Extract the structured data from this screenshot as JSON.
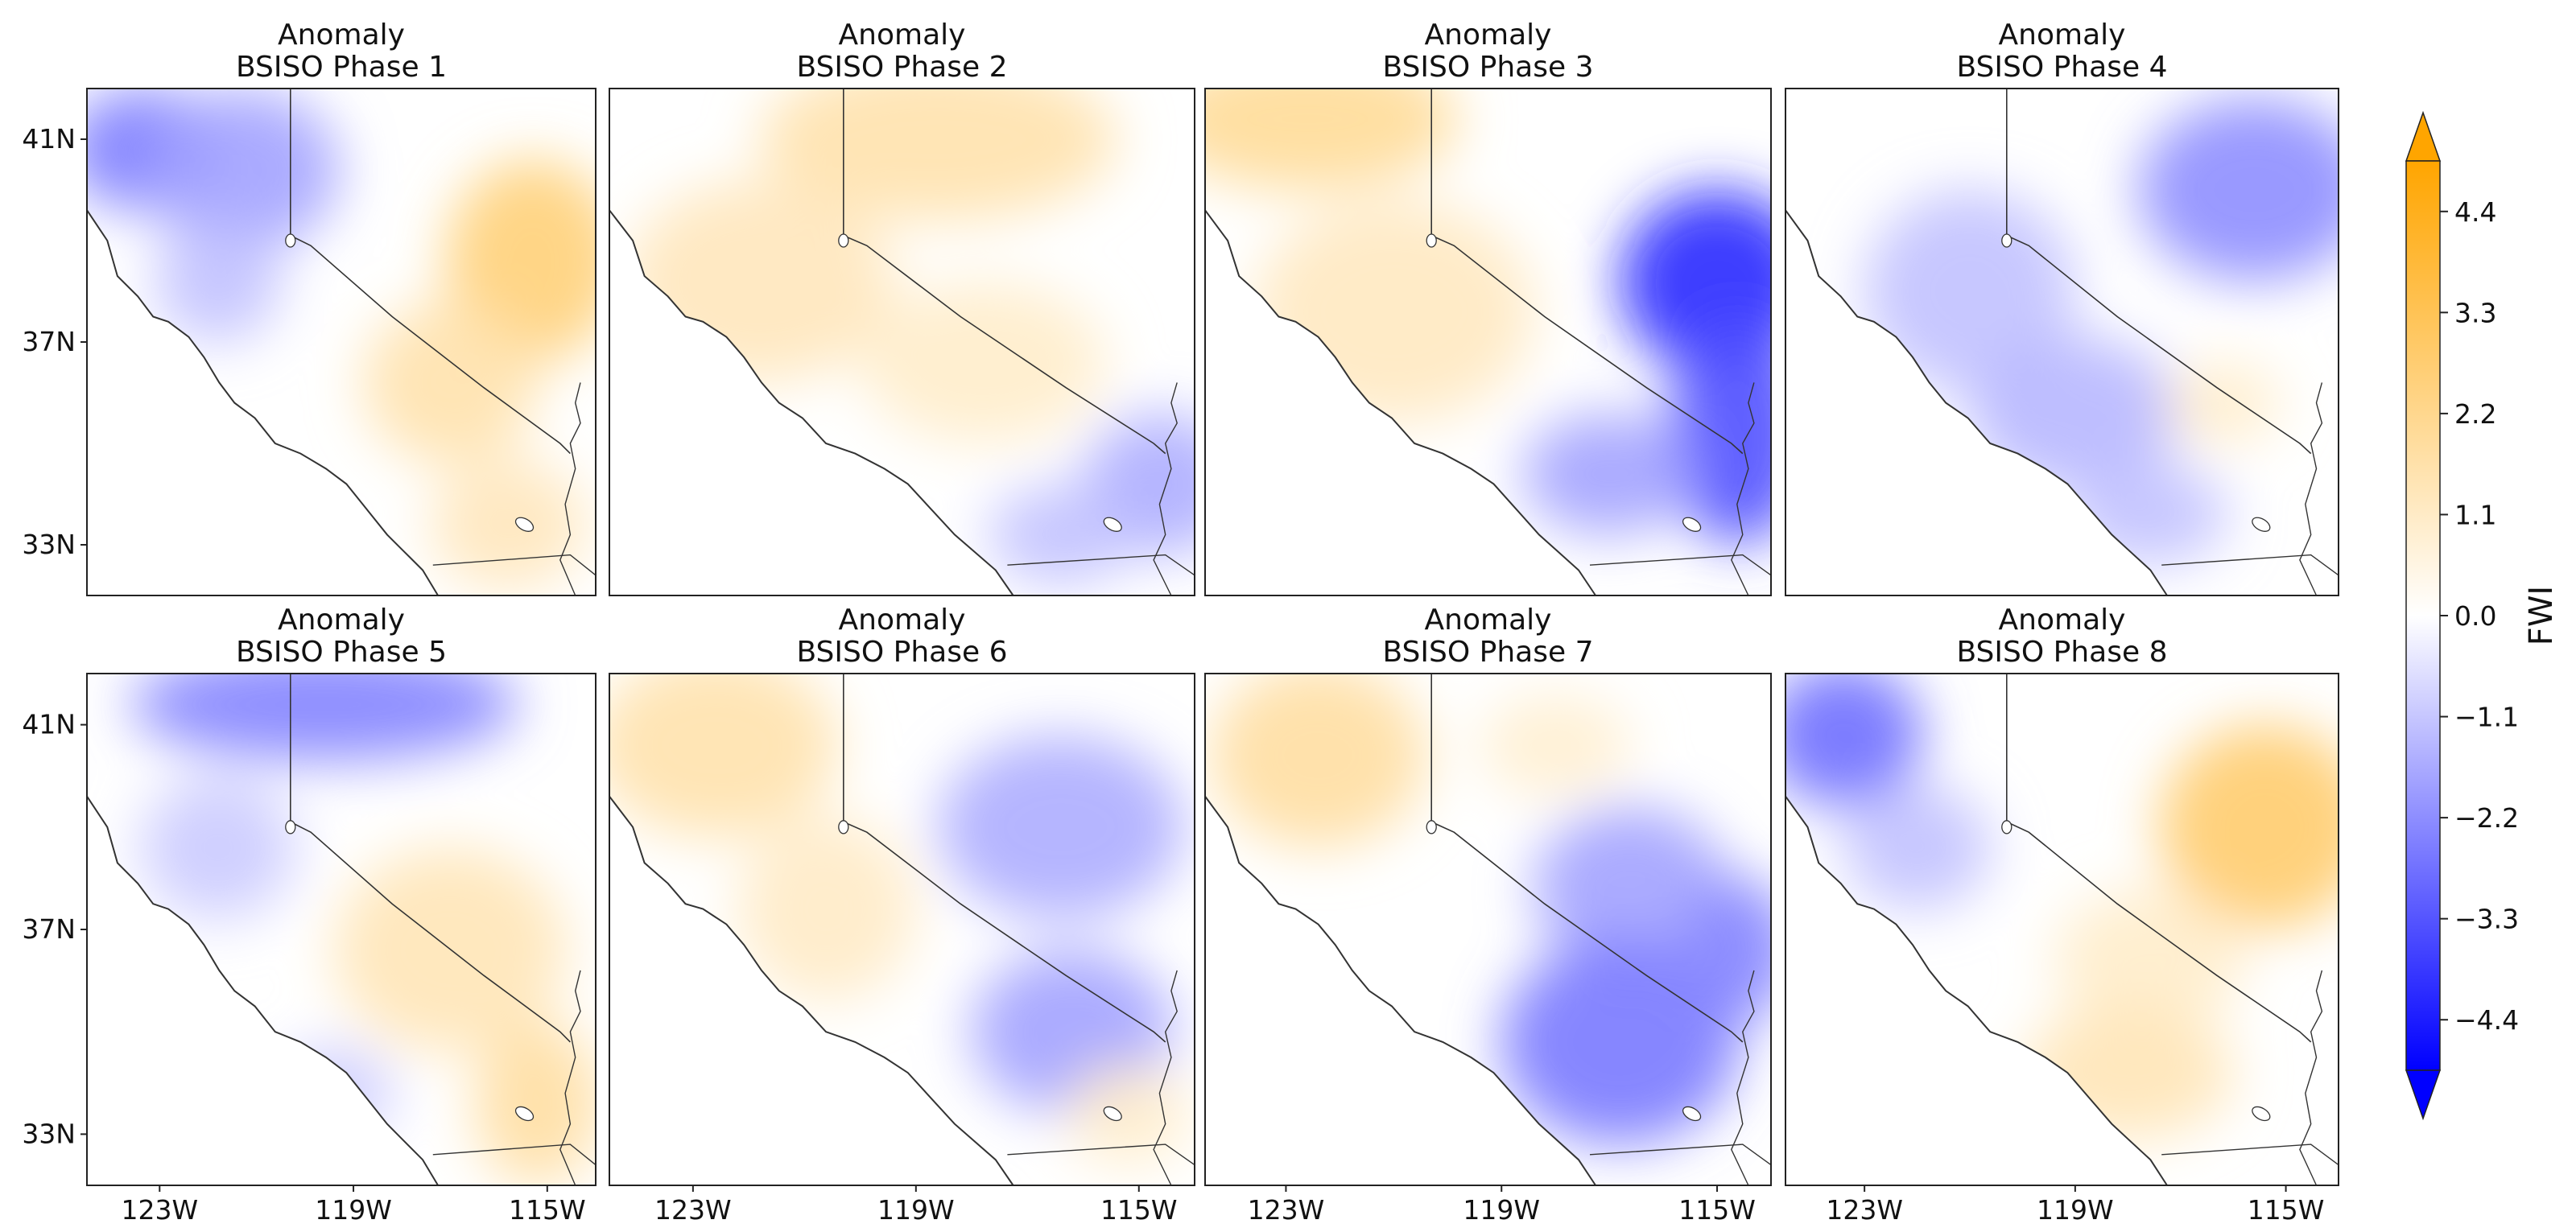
{
  "figure": {
    "panel_title_line1": "Anomaly",
    "colorbar_label": "FWI"
  },
  "chart_data": {
    "type": "heatmap",
    "variable": "FWI",
    "colormap": "blue-white-orange diverging",
    "colors": {
      "negative": "#0000ff",
      "zero": "#ffffff",
      "positive": "#ffa500"
    },
    "colorbar_range": [
      -4.95,
      4.95
    ],
    "colorbar_ticks": [
      4.4,
      3.3,
      2.2,
      1.1,
      0.0,
      -1.1,
      -2.2,
      -3.3,
      -4.4
    ],
    "colorbar_tick_labels": [
      "4.4",
      "3.3",
      "2.2",
      "1.1",
      "0.0",
      "−1.1",
      "−2.2",
      "−3.3",
      "−4.4"
    ],
    "colorbar_extend": "both",
    "lat_ticks": [
      "41N",
      "37N",
      "33N"
    ],
    "lon_ticks": [
      "123W",
      "119W",
      "115W"
    ],
    "lat_range": [
      32,
      42
    ],
    "lon_range": [
      -124.5,
      -114
    ],
    "panels": [
      {
        "title_line1": "Anomaly",
        "title_line2": "BSISO Phase 1",
        "anomalies": [
          {
            "lon": -123.3,
            "lat": 40.8,
            "value": -2.6,
            "rx": 1.6,
            "ry": 1.2
          },
          {
            "lon": -121.3,
            "lat": 40.4,
            "value": -1.8,
            "rx": 2.0,
            "ry": 1.6
          },
          {
            "lon": -121.8,
            "lat": 38.2,
            "value": -1.2,
            "rx": 1.3,
            "ry": 1.2
          },
          {
            "lon": -115.3,
            "lat": 38.6,
            "value": 2.6,
            "rx": 1.8,
            "ry": 2.0
          },
          {
            "lon": -117.0,
            "lat": 36.2,
            "value": 1.6,
            "rx": 1.8,
            "ry": 1.6
          },
          {
            "lon": -115.8,
            "lat": 33.4,
            "value": 1.3,
            "rx": 1.6,
            "ry": 1.3
          }
        ]
      },
      {
        "title_line1": "Anomaly",
        "title_line2": "BSISO Phase 2",
        "anomalies": [
          {
            "lon": -118.6,
            "lat": 41.0,
            "value": 1.6,
            "rx": 3.2,
            "ry": 1.6
          },
          {
            "lon": -121.8,
            "lat": 38.2,
            "value": 1.3,
            "rx": 2.4,
            "ry": 2.0
          },
          {
            "lon": -117.8,
            "lat": 36.6,
            "value": 1.0,
            "rx": 2.2,
            "ry": 1.6
          },
          {
            "lon": -114.6,
            "lat": 34.2,
            "value": -1.6,
            "rx": 1.4,
            "ry": 1.4
          },
          {
            "lon": -116.4,
            "lat": 33.2,
            "value": -1.2,
            "rx": 1.3,
            "ry": 1.0
          }
        ]
      },
      {
        "title_line1": "Anomaly",
        "title_line2": "BSISO Phase 3",
        "anomalies": [
          {
            "lon": -122.6,
            "lat": 41.4,
            "value": 2.0,
            "rx": 2.8,
            "ry": 1.4
          },
          {
            "lon": -121.0,
            "lat": 37.6,
            "value": 1.2,
            "rx": 2.6,
            "ry": 2.2
          },
          {
            "lon": -115.0,
            "lat": 38.2,
            "value": -4.2,
            "rx": 1.8,
            "ry": 1.8
          },
          {
            "lon": -114.6,
            "lat": 35.2,
            "value": -3.4,
            "rx": 1.3,
            "ry": 2.2
          },
          {
            "lon": -117.0,
            "lat": 34.4,
            "value": -1.8,
            "rx": 1.6,
            "ry": 1.2
          }
        ]
      },
      {
        "title_line1": "Anomaly",
        "title_line2": "BSISO Phase 4",
        "anomalies": [
          {
            "lon": -115.6,
            "lat": 40.0,
            "value": -2.2,
            "rx": 2.2,
            "ry": 1.8
          },
          {
            "lon": -121.0,
            "lat": 38.0,
            "value": -1.2,
            "rx": 2.0,
            "ry": 2.0
          },
          {
            "lon": -119.0,
            "lat": 35.6,
            "value": -1.4,
            "rx": 2.0,
            "ry": 1.5
          },
          {
            "lon": -116.2,
            "lat": 35.8,
            "value": 1.0,
            "rx": 1.1,
            "ry": 0.8
          },
          {
            "lon": -117.6,
            "lat": 33.6,
            "value": -1.2,
            "rx": 1.5,
            "ry": 1.0
          }
        ]
      },
      {
        "title_line1": "Anomaly",
        "title_line2": "BSISO Phase 5",
        "anomalies": [
          {
            "lon": -119.6,
            "lat": 41.4,
            "value": -2.4,
            "rx": 4.0,
            "ry": 1.1
          },
          {
            "lon": -121.8,
            "lat": 38.6,
            "value": -1.0,
            "rx": 1.6,
            "ry": 1.4
          },
          {
            "lon": -117.0,
            "lat": 36.6,
            "value": 1.4,
            "rx": 2.4,
            "ry": 2.0
          },
          {
            "lon": -115.2,
            "lat": 33.6,
            "value": 1.8,
            "rx": 1.3,
            "ry": 1.6
          },
          {
            "lon": -119.4,
            "lat": 33.8,
            "value": -1.0,
            "rx": 1.2,
            "ry": 0.9
          }
        ]
      },
      {
        "title_line1": "Anomaly",
        "title_line2": "BSISO Phase 6",
        "anomalies": [
          {
            "lon": -122.6,
            "lat": 40.6,
            "value": 1.6,
            "rx": 2.2,
            "ry": 1.8
          },
          {
            "lon": -120.6,
            "lat": 37.4,
            "value": 1.1,
            "rx": 1.6,
            "ry": 1.8
          },
          {
            "lon": -116.4,
            "lat": 39.0,
            "value": -1.6,
            "rx": 2.2,
            "ry": 1.8
          },
          {
            "lon": -116.2,
            "lat": 35.0,
            "value": -1.8,
            "rx": 1.8,
            "ry": 1.6
          },
          {
            "lon": -115.2,
            "lat": 33.4,
            "value": 1.0,
            "rx": 1.1,
            "ry": 1.0
          }
        ]
      },
      {
        "title_line1": "Anomaly",
        "title_line2": "BSISO Phase 7",
        "anomalies": [
          {
            "lon": -122.4,
            "lat": 40.4,
            "value": 1.8,
            "rx": 2.0,
            "ry": 1.8
          },
          {
            "lon": -118.0,
            "lat": 40.6,
            "value": 0.9,
            "rx": 1.4,
            "ry": 1.0
          },
          {
            "lon": -116.6,
            "lat": 37.8,
            "value": -1.8,
            "rx": 1.8,
            "ry": 1.6
          },
          {
            "lon": -116.8,
            "lat": 34.8,
            "value": -2.6,
            "rx": 2.2,
            "ry": 2.0
          },
          {
            "lon": -114.6,
            "lat": 36.6,
            "value": -2.4,
            "rx": 1.0,
            "ry": 1.4
          }
        ]
      },
      {
        "title_line1": "Anomaly",
        "title_line2": "BSISO Phase 8",
        "anomalies": [
          {
            "lon": -123.4,
            "lat": 40.8,
            "value": -2.8,
            "rx": 1.5,
            "ry": 1.4
          },
          {
            "lon": -122.0,
            "lat": 38.6,
            "value": -1.2,
            "rx": 1.4,
            "ry": 1.2
          },
          {
            "lon": -115.4,
            "lat": 39.0,
            "value": 2.8,
            "rx": 2.0,
            "ry": 2.0
          },
          {
            "lon": -117.6,
            "lat": 36.4,
            "value": 1.0,
            "rx": 1.8,
            "ry": 1.4
          },
          {
            "lon": -118.0,
            "lat": 34.2,
            "value": 1.4,
            "rx": 2.0,
            "ry": 1.3
          }
        ]
      }
    ]
  }
}
